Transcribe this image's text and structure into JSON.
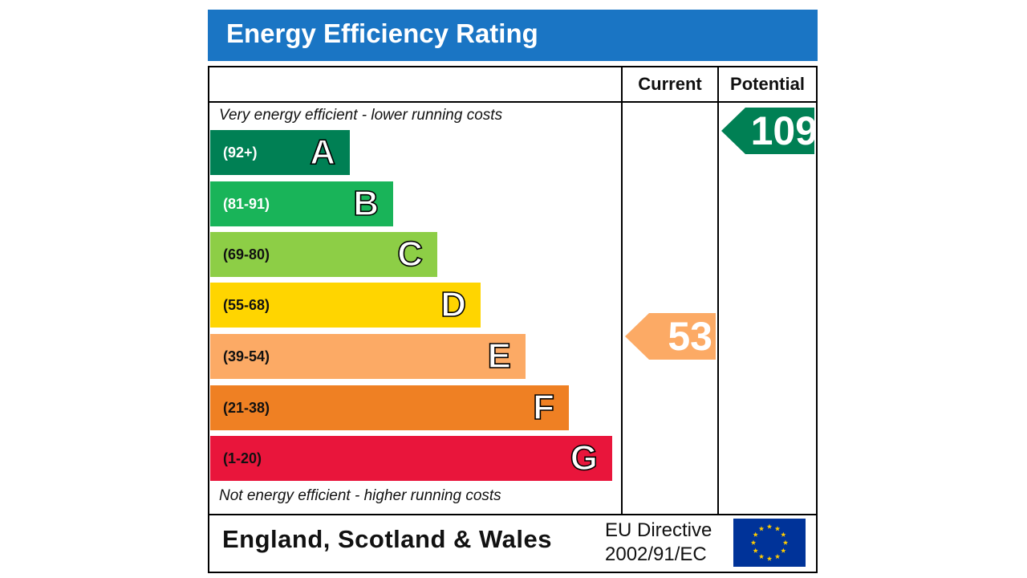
{
  "title": "Energy Efficiency Rating",
  "columns": {
    "current": "Current",
    "potential": "Potential"
  },
  "notes": {
    "top": "Very energy efficient - lower running costs",
    "bottom": "Not energy efficient - higher running costs"
  },
  "footer": {
    "country": "England, Scotland & Wales",
    "directive_line1": "EU Directive",
    "directive_line2": "2002/91/EC"
  },
  "chart_data": {
    "type": "bar",
    "title": "Energy Efficiency Rating",
    "bands": [
      {
        "letter": "A",
        "range": "(92+)",
        "color": "#008054",
        "text_color": "#ffffff"
      },
      {
        "letter": "B",
        "range": "(81-91)",
        "color": "#19b459",
        "text_color": "#ffffff"
      },
      {
        "letter": "C",
        "range": "(69-80)",
        "color": "#8dce46",
        "text_color": "#111111"
      },
      {
        "letter": "D",
        "range": "(55-68)",
        "color": "#ffd500",
        "text_color": "#111111"
      },
      {
        "letter": "E",
        "range": "(39-54)",
        "color": "#fcaa65",
        "text_color": "#111111"
      },
      {
        "letter": "F",
        "range": "(21-38)",
        "color": "#ef8023",
        "text_color": "#111111"
      },
      {
        "letter": "G",
        "range": "(1-20)",
        "color": "#e9153b",
        "text_color": "#111111"
      }
    ],
    "current": {
      "value": 53,
      "band": "E",
      "color": "#fcaa65"
    },
    "potential": {
      "value": 109,
      "band": "A",
      "color": "#008054"
    }
  }
}
